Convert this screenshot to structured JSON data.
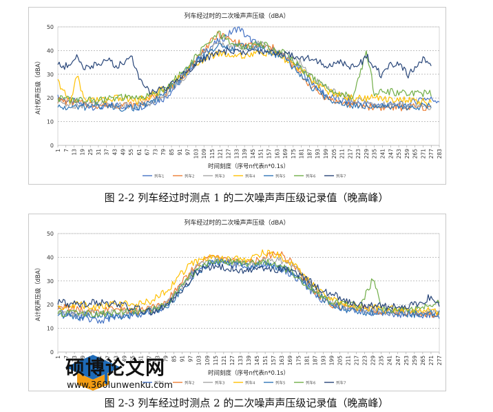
{
  "chart_data": [
    {
      "type": "line",
      "title": "列车经过时的二次噪声声压级（dBA）",
      "xlabel": "时间刻度（序号n代表n*0.1s）",
      "ylabel": "A计权声压级（dBA）",
      "ylim": [
        0,
        50
      ],
      "yticks": [
        0,
        10,
        20,
        30,
        40,
        50
      ],
      "xticks": [
        1,
        7,
        13,
        19,
        25,
        31,
        37,
        43,
        49,
        55,
        61,
        67,
        73,
        79,
        85,
        91,
        97,
        103,
        109,
        115,
        121,
        127,
        133,
        139,
        145,
        151,
        157,
        163,
        169,
        175,
        181,
        187,
        193,
        199,
        205,
        211,
        217,
        223,
        229,
        235,
        241,
        247,
        253,
        259,
        265,
        271,
        277,
        283
      ],
      "grid": true,
      "legend": "bottom",
      "series": [
        {
          "name": "列车1",
          "color": "#4472c4",
          "x": [
            1,
            15,
            30,
            45,
            60,
            70,
            80,
            90,
            100,
            110,
            120,
            130,
            135,
            140,
            150,
            160,
            170,
            180,
            190,
            200,
            210,
            220,
            240,
            260,
            270,
            283
          ],
          "y": [
            20,
            18,
            16,
            17,
            16,
            18,
            20,
            26,
            33,
            40,
            44,
            48,
            50,
            46,
            42,
            40,
            37,
            32,
            26,
            21,
            19,
            18,
            17,
            17,
            20,
            19
          ]
        },
        {
          "name": "列车2",
          "color": "#ed7d31",
          "x": [
            1,
            15,
            30,
            45,
            60,
            70,
            80,
            90,
            100,
            110,
            120,
            130,
            140,
            150,
            160,
            170,
            180,
            190,
            200,
            210,
            220,
            240,
            260,
            277
          ],
          "y": [
            19,
            18,
            17,
            17,
            17,
            20,
            22,
            27,
            34,
            41,
            47,
            44,
            42,
            42,
            41,
            37,
            30,
            24,
            20,
            18,
            17,
            16,
            16,
            16
          ]
        },
        {
          "name": "列车3",
          "color": "#a5a5a5",
          "x": [
            1,
            15,
            30,
            45,
            60,
            70,
            80,
            90,
            100,
            110,
            120,
            130,
            140,
            150,
            160,
            170,
            180,
            190,
            200,
            210,
            220,
            240,
            260,
            277
          ],
          "y": [
            18,
            17,
            18,
            17,
            17,
            18,
            21,
            26,
            33,
            39,
            43,
            42,
            41,
            43,
            40,
            37,
            35,
            28,
            24,
            21,
            19,
            17,
            17,
            16
          ]
        },
        {
          "name": "列车4",
          "color": "#ffc000",
          "x": [
            1,
            10,
            15,
            20,
            30,
            45,
            60,
            70,
            80,
            90,
            100,
            110,
            120,
            130,
            140,
            150,
            160,
            170,
            180,
            190,
            200,
            210,
            220,
            240,
            260,
            277
          ],
          "y": [
            27,
            18,
            30,
            20,
            19,
            20,
            19,
            21,
            24,
            28,
            33,
            37,
            39,
            38,
            38,
            39,
            39,
            36,
            32,
            27,
            23,
            21,
            20,
            20,
            19,
            18
          ]
        },
        {
          "name": "列车5",
          "color": "#2e75b6",
          "x": [
            1,
            15,
            30,
            45,
            60,
            70,
            80,
            90,
            100,
            110,
            120,
            130,
            140,
            150,
            160,
            170,
            180,
            190,
            200,
            210,
            220,
            240,
            260,
            277
          ],
          "y": [
            16,
            16,
            17,
            16,
            16,
            18,
            22,
            27,
            34,
            38,
            42,
            41,
            42,
            41,
            39,
            36,
            30,
            24,
            20,
            18,
            17,
            17,
            16,
            17
          ]
        },
        {
          "name": "列车6",
          "color": "#70ad47",
          "x": [
            1,
            15,
            30,
            45,
            60,
            70,
            80,
            90,
            100,
            110,
            120,
            130,
            140,
            150,
            160,
            170,
            180,
            190,
            200,
            210,
            220,
            229,
            235,
            240,
            260,
            277
          ],
          "y": [
            20,
            19,
            19,
            20,
            20,
            21,
            24,
            29,
            35,
            42,
            47,
            43,
            41,
            43,
            41,
            39,
            33,
            28,
            24,
            22,
            21,
            40,
            22,
            23,
            22,
            22
          ]
        },
        {
          "name": "列车7",
          "color": "#264478",
          "x": [
            1,
            10,
            15,
            20,
            30,
            40,
            45,
            55,
            60,
            70,
            80,
            90,
            100,
            110,
            120,
            130,
            140,
            150,
            160,
            170,
            180,
            190,
            200,
            210,
            220,
            230,
            240,
            250,
            260,
            270,
            277
          ],
          "y": [
            34,
            33,
            38,
            33,
            34,
            36,
            33,
            38,
            30,
            22,
            24,
            28,
            33,
            37,
            39,
            40,
            39,
            40,
            39,
            39,
            37,
            37,
            33,
            35,
            33,
            37,
            30,
            35,
            30,
            36,
            35
          ]
        }
      ]
    },
    {
      "type": "line",
      "title": "列车经过时的二次噪声声压级（dBA）",
      "xlabel": "时间刻度（序号n代表n*0.1s）",
      "ylabel": "A计权声压级（dBA）",
      "ylim": [
        0,
        50
      ],
      "yticks": [
        0,
        10,
        20,
        30,
        40,
        50
      ],
      "xticks": [
        1,
        7,
        13,
        19,
        25,
        31,
        37,
        43,
        49,
        55,
        61,
        67,
        73,
        79,
        85,
        91,
        97,
        103,
        109,
        115,
        121,
        127,
        133,
        139,
        145,
        151,
        157,
        163,
        169,
        175,
        181,
        187,
        193,
        199,
        205,
        211,
        217,
        223,
        229,
        235,
        241,
        247,
        253,
        259,
        265,
        271,
        277
      ],
      "grid": true,
      "legend": "bottom",
      "series": [
        {
          "name": "列车1",
          "color": "#4472c4",
          "x": [
            1,
            15,
            30,
            45,
            60,
            70,
            80,
            90,
            100,
            110,
            120,
            130,
            140,
            150,
            160,
            170,
            180,
            190,
            200,
            210,
            220,
            240,
            260,
            277
          ],
          "y": [
            18,
            15,
            13,
            15,
            16,
            17,
            20,
            28,
            34,
            37,
            38,
            37,
            36,
            37,
            36,
            33,
            28,
            23,
            20,
            18,
            17,
            16,
            16,
            15
          ]
        },
        {
          "name": "列车2",
          "color": "#ed7d31",
          "x": [
            1,
            15,
            30,
            45,
            60,
            70,
            80,
            90,
            100,
            110,
            120,
            130,
            140,
            150,
            160,
            170,
            180,
            190,
            200,
            210,
            220,
            240,
            260,
            277
          ],
          "y": [
            19,
            18,
            17,
            18,
            17,
            19,
            22,
            29,
            36,
            40,
            40,
            38,
            38,
            40,
            42,
            38,
            30,
            24,
            20,
            19,
            18,
            17,
            16,
            16
          ]
        },
        {
          "name": "列车3",
          "color": "#a5a5a5",
          "x": [
            1,
            15,
            30,
            45,
            60,
            70,
            80,
            90,
            100,
            110,
            120,
            130,
            140,
            150,
            160,
            170,
            180,
            190,
            200,
            210,
            220,
            240,
            260,
            277
          ],
          "y": [
            17,
            16,
            17,
            16,
            17,
            18,
            21,
            27,
            35,
            39,
            39,
            38,
            37,
            39,
            39,
            37,
            31,
            25,
            21,
            19,
            18,
            17,
            17,
            17
          ]
        },
        {
          "name": "列车4",
          "color": "#ffc000",
          "x": [
            1,
            15,
            30,
            45,
            60,
            70,
            80,
            90,
            100,
            110,
            120,
            130,
            140,
            150,
            160,
            170,
            180,
            190,
            200,
            210,
            220,
            240,
            260,
            277
          ],
          "y": [
            19,
            20,
            19,
            21,
            20,
            22,
            26,
            33,
            38,
            40,
            39,
            39,
            39,
            42,
            41,
            38,
            32,
            26,
            22,
            20,
            19,
            18,
            18,
            17
          ]
        },
        {
          "name": "列车5",
          "color": "#2e75b6",
          "x": [
            1,
            15,
            30,
            45,
            60,
            70,
            80,
            90,
            100,
            110,
            120,
            130,
            140,
            150,
            160,
            170,
            180,
            190,
            200,
            210,
            220,
            240,
            260,
            277
          ],
          "y": [
            16,
            15,
            16,
            15,
            16,
            17,
            19,
            25,
            33,
            37,
            38,
            37,
            36,
            37,
            36,
            34,
            29,
            24,
            20,
            18,
            17,
            17,
            16,
            16
          ]
        },
        {
          "name": "列车6",
          "color": "#70ad47",
          "x": [
            1,
            15,
            30,
            45,
            60,
            70,
            80,
            90,
            100,
            110,
            120,
            130,
            140,
            150,
            160,
            170,
            180,
            190,
            200,
            210,
            220,
            229,
            235,
            240,
            260,
            277
          ],
          "y": [
            16,
            17,
            16,
            17,
            17,
            18,
            21,
            27,
            34,
            38,
            38,
            38,
            37,
            38,
            37,
            34,
            29,
            24,
            21,
            20,
            19,
            31,
            19,
            18,
            18,
            21
          ]
        },
        {
          "name": "列车7",
          "color": "#264478",
          "x": [
            1,
            15,
            30,
            45,
            60,
            70,
            80,
            90,
            100,
            110,
            120,
            130,
            140,
            150,
            160,
            170,
            180,
            190,
            200,
            210,
            220,
            240,
            260,
            270,
            277
          ],
          "y": [
            21,
            20,
            21,
            20,
            18,
            17,
            20,
            26,
            33,
            36,
            36,
            35,
            34,
            35,
            35,
            34,
            31,
            27,
            24,
            22,
            20,
            19,
            20,
            23,
            19
          ]
        }
      ]
    }
  ],
  "captions": {
    "fig1": "图  2-2  列车经过时测点 1 的二次噪声声压级记录值（晚高峰）",
    "fig2": "图  2-3  列车经过时测点 2 的二次噪声声压级记录值（晚高峰）"
  },
  "watermark": {
    "text": "硕博论文网",
    "url": "www.360lunwenku.com",
    "color_blue": "#1e6bb8",
    "color_orange": "#f39c12"
  }
}
